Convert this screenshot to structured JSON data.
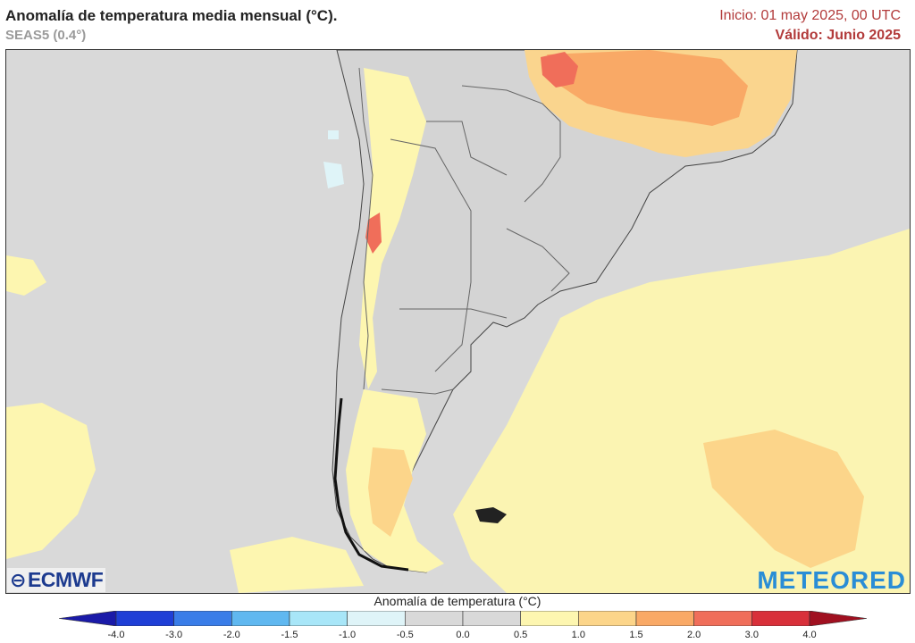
{
  "header": {
    "title": "Anomalía de temperatura media mensual (°C).",
    "model": "SEAS5 (0.4°)",
    "init": "Inicio: 01 may 2025, 00 UTC",
    "valid": "Válido: Junio 2025"
  },
  "logos": {
    "left": "ECMWF",
    "right": "METEORED"
  },
  "colorbar": {
    "title": "Anomalía de temperatura (°C)",
    "ticks": [
      "-4.0",
      "-3.0",
      "-2.0",
      "-1.5",
      "-1.0",
      "-0.5",
      "0.0",
      "0.5",
      "1.0",
      "1.5",
      "2.0",
      "3.0",
      "4.0"
    ],
    "colors": [
      "#1f3fd6",
      "#3a7de8",
      "#60b8f0",
      "#a8e6f8",
      "#dff4f8",
      "#d9d9d9",
      "#d9d9d9",
      "#fdf6b0",
      "#fcd58a",
      "#f9a966",
      "#f06e5a",
      "#d8303a"
    ],
    "low_end_color": "#1a1aa8",
    "high_end_color": "#a01020"
  }
}
